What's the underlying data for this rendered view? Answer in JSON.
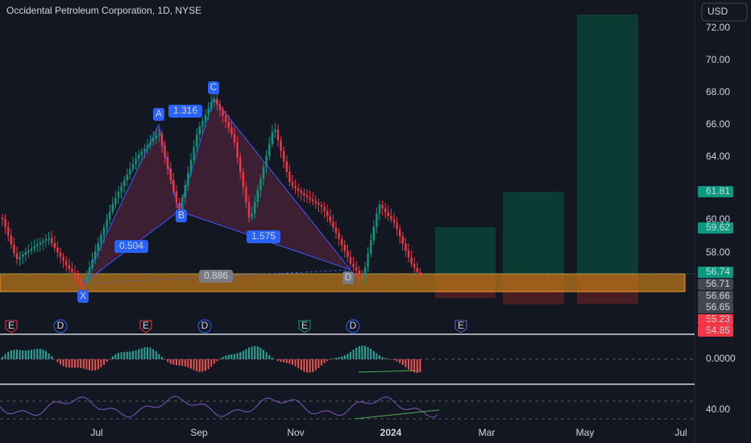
{
  "header": {
    "title": "Occidental Petroleum Corporation, 1D, NYSE",
    "currency": "USD"
  },
  "price_axis": [
    "72.00",
    "70.00",
    "68.00",
    "66.00",
    "64.00",
    "60.00",
    "58.00"
  ],
  "price_badges": [
    {
      "label": "61.81",
      "color": "#089981"
    },
    {
      "label": "59.62",
      "color": "#089981"
    },
    {
      "label": "56.74",
      "color": "#089981"
    },
    {
      "label": "56.71",
      "color": "#434651"
    },
    {
      "label": "56.66",
      "color": "#434651"
    },
    {
      "label": "56.65",
      "color": "#434651"
    },
    {
      "label": "55.23",
      "color": "#f23645"
    },
    {
      "label": "54.85",
      "color": "#f23645"
    }
  ],
  "pattern": {
    "points": [
      "X",
      "A",
      "B",
      "C",
      "D"
    ],
    "ratios": [
      "0.504",
      "1.316",
      "1.575",
      "0.886"
    ]
  },
  "events": [
    "E",
    "D",
    "E",
    "D",
    "E",
    "D",
    "E"
  ],
  "indicators": {
    "macd_level": "0.0000",
    "rsi_level": "40.00"
  },
  "time_axis": [
    "Jul",
    "Sep",
    "Nov",
    "2024",
    "Mar",
    "May",
    "Jul"
  ]
}
